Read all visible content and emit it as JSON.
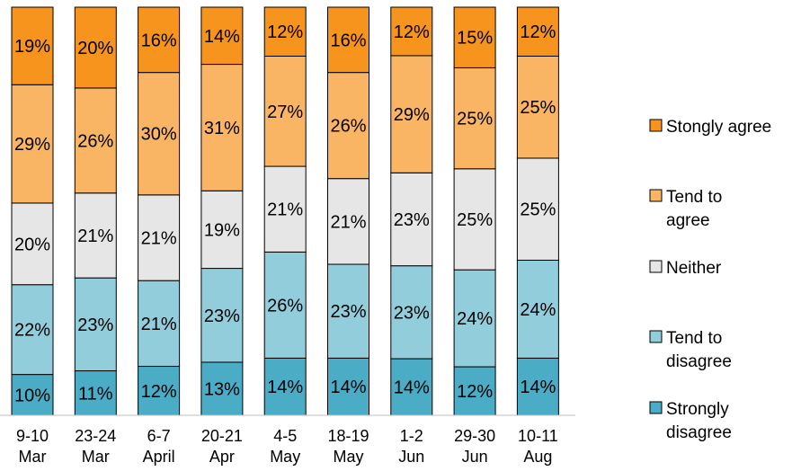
{
  "chart_data": {
    "type": "bar",
    "stacked": true,
    "normalized": true,
    "categories": [
      [
        "9-10",
        "Mar"
      ],
      [
        "23-24",
        "Mar"
      ],
      [
        "6-7",
        "April"
      ],
      [
        "20-21",
        "Apr"
      ],
      [
        "4-5",
        "May"
      ],
      [
        "18-19",
        "May"
      ],
      [
        "1-2",
        "Jun"
      ],
      [
        "29-30",
        "Jun"
      ],
      [
        "10-11",
        "Aug"
      ]
    ],
    "series": [
      {
        "name": "Strongly disagree",
        "legend_lines": [
          "Strongly",
          "disagree"
        ],
        "color": "#4bacc6",
        "values": [
          10,
          11,
          12,
          13,
          14,
          14,
          14,
          12,
          14
        ]
      },
      {
        "name": "Tend to disagree",
        "legend_lines": [
          "Tend to",
          "disagree"
        ],
        "color": "#92cddc",
        "values": [
          22,
          23,
          21,
          23,
          26,
          23,
          23,
          24,
          24
        ]
      },
      {
        "name": "Neither",
        "legend_lines": [
          "Neither"
        ],
        "color": "#e6e6e6",
        "values": [
          20,
          21,
          21,
          19,
          21,
          21,
          23,
          25,
          25
        ]
      },
      {
        "name": "Tend to agree",
        "legend_lines": [
          "Tend to",
          "agree"
        ],
        "color": "#fab564",
        "values": [
          29,
          26,
          30,
          31,
          27,
          26,
          29,
          25,
          25
        ]
      },
      {
        "name": "Stongly agree",
        "legend_lines": [
          "Stongly agree"
        ],
        "color": "#f7941d",
        "values": [
          19,
          20,
          16,
          14,
          12,
          16,
          12,
          15,
          12
        ]
      }
    ],
    "value_suffix": "%",
    "legend_placement": "right",
    "grid": false
  }
}
